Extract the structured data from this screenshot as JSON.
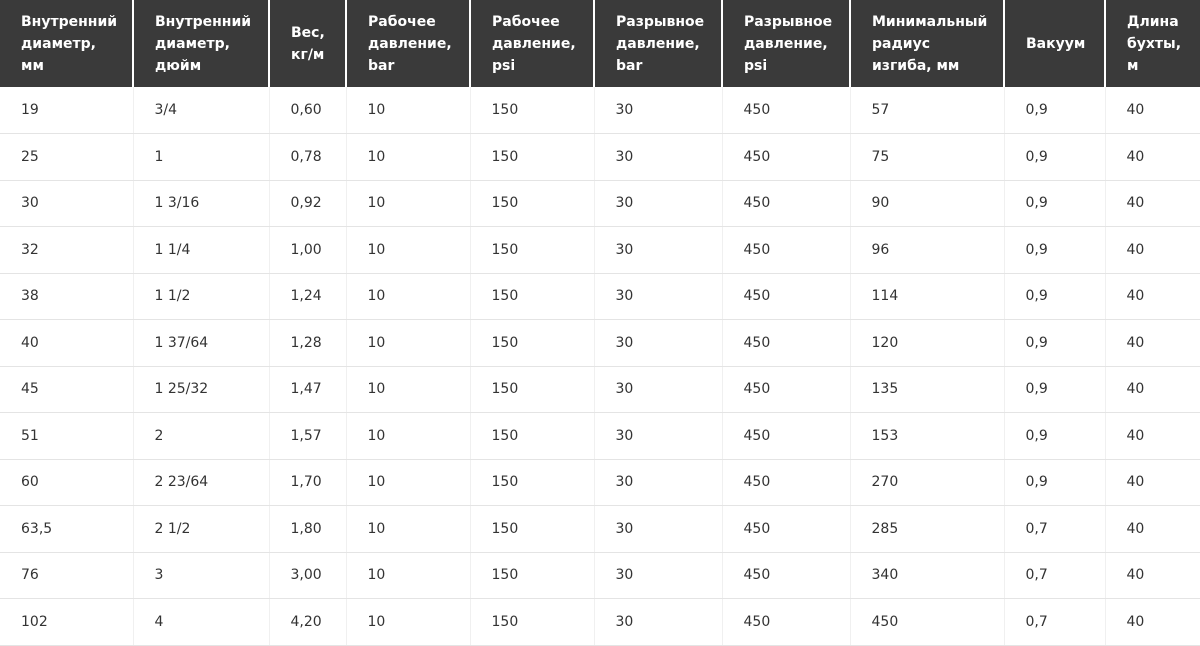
{
  "table": {
    "headers": [
      "Внутренний\nдиаметр,\nмм",
      "Внутренний\nдиаметр,\nдюйм",
      "Вес,\nкг/м",
      "Рабочее\nдавление,\nbar",
      "Рабочее\nдавление,\npsi",
      "Разрывное\nдавление,\nbar",
      "Разрывное\nдавление,\npsi",
      "Минимальный\nрадиус\nизгиба, мм",
      "Вакуум",
      "Длина\nбухты,\nм"
    ],
    "rows": [
      [
        "19",
        "3/4",
        "0,60",
        "10",
        "150",
        "30",
        "450",
        "57",
        "0,9",
        "40"
      ],
      [
        "25",
        "1",
        "0,78",
        "10",
        "150",
        "30",
        "450",
        "75",
        "0,9",
        "40"
      ],
      [
        "30",
        "1 3/16",
        "0,92",
        "10",
        "150",
        "30",
        "450",
        "90",
        "0,9",
        "40"
      ],
      [
        "32",
        "1 1/4",
        "1,00",
        "10",
        "150",
        "30",
        "450",
        "96",
        "0,9",
        "40"
      ],
      [
        "38",
        "1 1/2",
        "1,24",
        "10",
        "150",
        "30",
        "450",
        "114",
        "0,9",
        "40"
      ],
      [
        "40",
        "1 37/64",
        "1,28",
        "10",
        "150",
        "30",
        "450",
        "120",
        "0,9",
        "40"
      ],
      [
        "45",
        "1 25/32",
        "1,47",
        "10",
        "150",
        "30",
        "450",
        "135",
        "0,9",
        "40"
      ],
      [
        "51",
        "2",
        "1,57",
        "10",
        "150",
        "30",
        "450",
        "153",
        "0,9",
        "40"
      ],
      [
        "60",
        "2 23/64",
        "1,70",
        "10",
        "150",
        "30",
        "450",
        "270",
        "0,9",
        "40"
      ],
      [
        "63,5",
        "2 1/2",
        "1,80",
        "10",
        "150",
        "30",
        "450",
        "285",
        "0,7",
        "40"
      ],
      [
        "76",
        "3",
        "3,00",
        "10",
        "150",
        "30",
        "450",
        "340",
        "0,7",
        "40"
      ],
      [
        "102",
        "4",
        "4,20",
        "10",
        "150",
        "30",
        "450",
        "450",
        "0,7",
        "40"
      ]
    ]
  }
}
